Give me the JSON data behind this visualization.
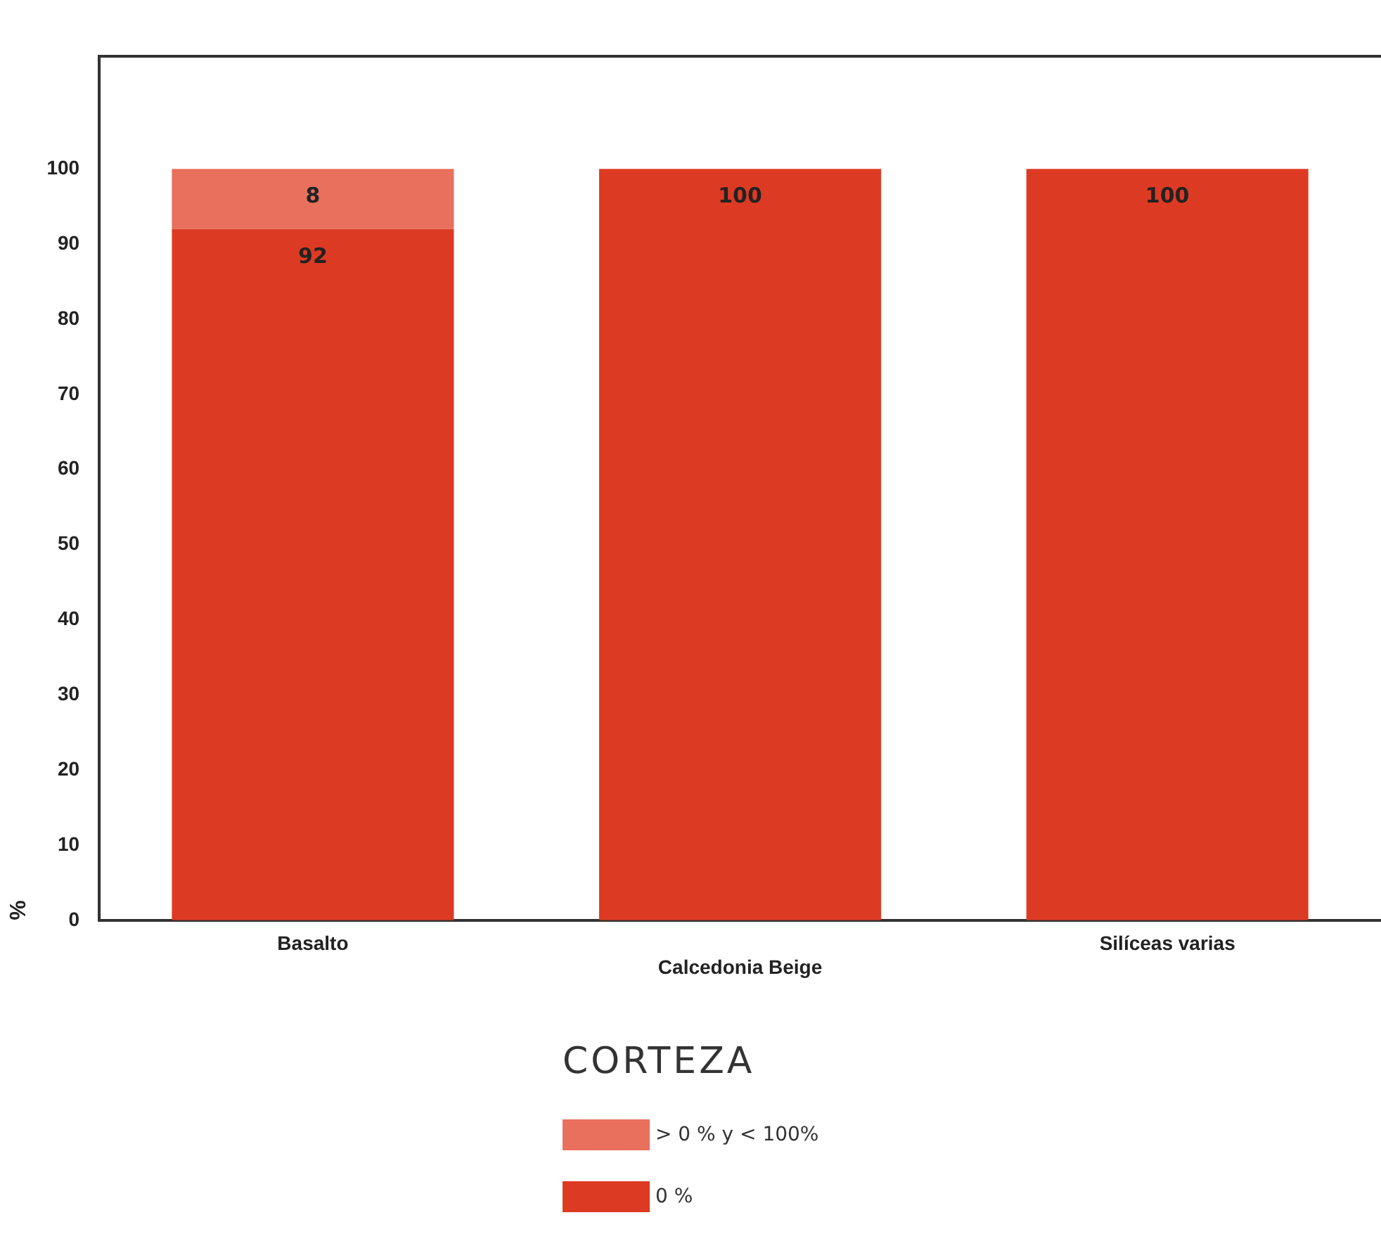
{
  "chart_data": {
    "type": "bar",
    "stacked": true,
    "categories": [
      "Basalto",
      "Calcedonia Beige",
      "Silíceas varias"
    ],
    "series": [
      {
        "name": "0 %",
        "color": "#dd3a24",
        "values": [
          92,
          100,
          100
        ],
        "value_labels": [
          "92",
          "100",
          "100"
        ]
      },
      {
        "name": "> 0 % y < 100%",
        "color": "#e8705c",
        "values": [
          8,
          0,
          0
        ],
        "value_labels": [
          "8",
          null,
          null
        ]
      }
    ],
    "ylabel": "%",
    "ylim": [
      0,
      115
    ],
    "yticks": [
      0,
      10,
      20,
      30,
      40,
      50,
      60,
      70,
      80,
      90,
      100
    ],
    "grid": false,
    "legend": "bottom",
    "legend_title": "CORTEZA"
  }
}
